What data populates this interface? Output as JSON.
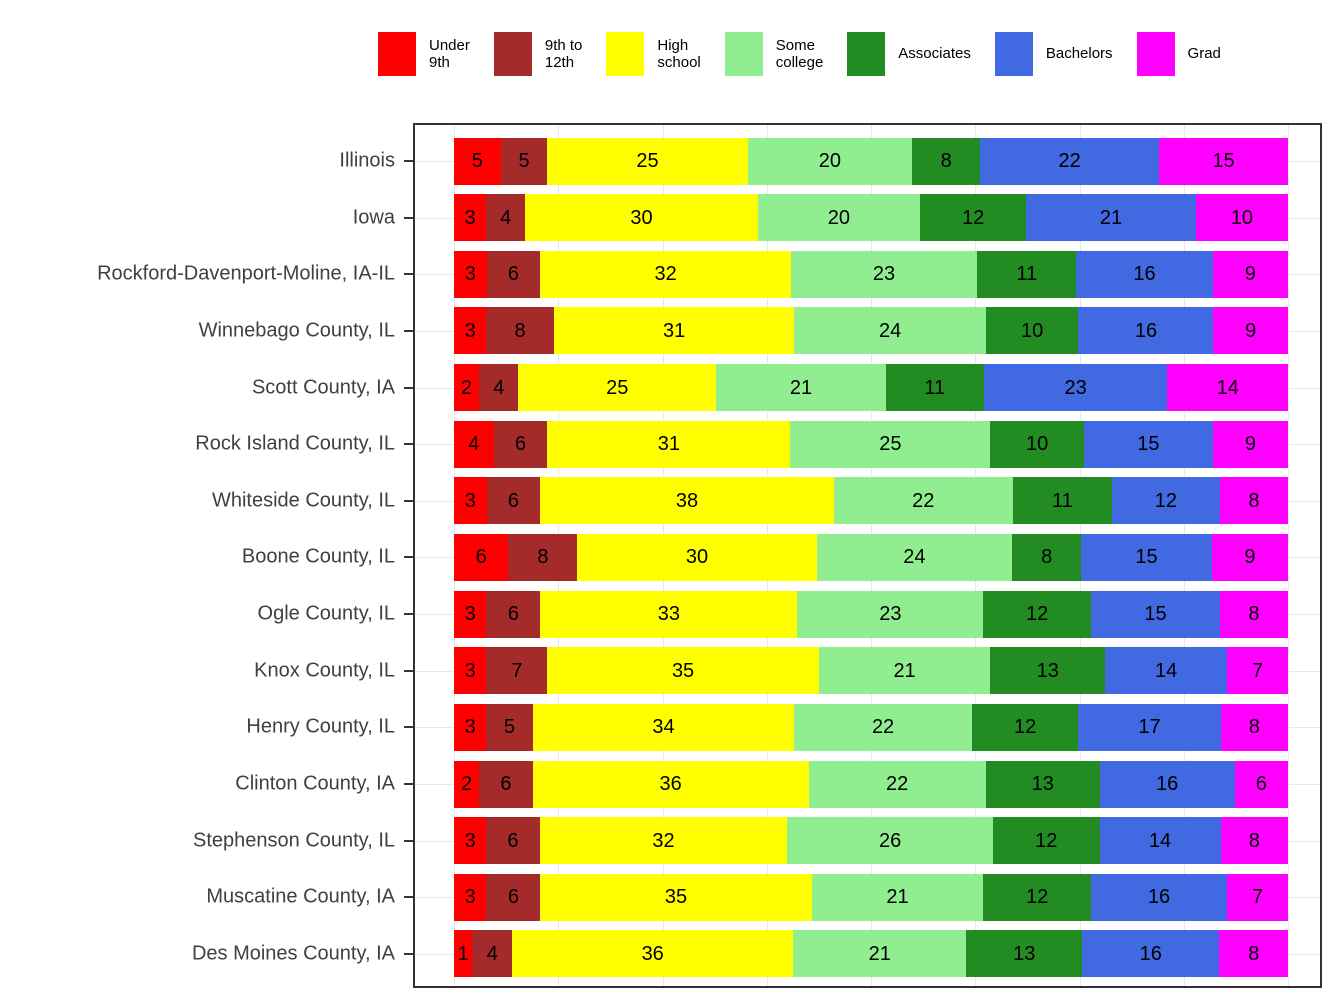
{
  "legend": {
    "items": [
      {
        "label": "Under\n9th",
        "color": "#FF0000"
      },
      {
        "label": "9th to\n12th",
        "color": "#A52A2A"
      },
      {
        "label": "High\nschool",
        "color": "#FFFF00"
      },
      {
        "label": "Some\ncollege",
        "color": "#90EE90"
      },
      {
        "label": "Associates",
        "color": "#228B22"
      },
      {
        "label": "Bachelors",
        "color": "#4169E1"
      },
      {
        "label": "Grad",
        "color": "#FF00FF"
      }
    ]
  },
  "chart_data": {
    "type": "bar",
    "orientation": "horizontal",
    "stacked": true,
    "units": "percent",
    "title": "",
    "xlabel": "",
    "ylabel": "",
    "xlim": [
      0,
      100
    ],
    "grid": "light-gray major gridlines on white panel, black panel border, legend on top",
    "legend_position": "top",
    "categories": [
      "Illinois",
      "Iowa",
      "Rockford-Davenport-Moline, IA-IL",
      "Winnebago County, IL",
      "Scott County, IA",
      "Rock Island County, IL",
      "Whiteside County, IL",
      "Boone County, IL",
      "Ogle County, IL",
      "Knox County, IL",
      "Henry County, IL",
      "Clinton County, IA",
      "Stephenson County, IL",
      "Muscatine County, IA",
      "Des Moines County, IA"
    ],
    "series": [
      {
        "name": "Under 9th",
        "color": "#FF0000",
        "values": [
          5,
          3,
          3,
          3,
          2,
          4,
          3,
          6,
          3,
          3,
          3,
          2,
          3,
          3,
          1
        ]
      },
      {
        "name": "9th to 12th",
        "color": "#A52A2A",
        "values": [
          5,
          4,
          6,
          8,
          4,
          6,
          6,
          8,
          6,
          7,
          5,
          6,
          6,
          6,
          4
        ]
      },
      {
        "name": "High school",
        "color": "#FFFF00",
        "values": [
          25,
          30,
          32,
          31,
          25,
          31,
          38,
          30,
          33,
          35,
          34,
          36,
          32,
          35,
          36
        ]
      },
      {
        "name": "Some college",
        "color": "#90EE90",
        "values": [
          20,
          20,
          23,
          24,
          21,
          25,
          22,
          24,
          23,
          21,
          22,
          22,
          26,
          21,
          21
        ]
      },
      {
        "name": "Associates",
        "color": "#228B22",
        "values": [
          8,
          12,
          11,
          10,
          11,
          10,
          11,
          8,
          12,
          13,
          12,
          13,
          12,
          12,
          13
        ]
      },
      {
        "name": "Bachelors",
        "color": "#4169E1",
        "values": [
          22,
          21,
          16,
          16,
          23,
          15,
          12,
          15,
          15,
          14,
          17,
          16,
          14,
          16,
          16
        ]
      },
      {
        "name": "Grad",
        "color": "#FF00FF",
        "values": [
          15,
          10,
          9,
          9,
          14,
          9,
          8,
          9,
          8,
          7,
          8,
          6,
          8,
          7,
          8
        ]
      }
    ]
  }
}
